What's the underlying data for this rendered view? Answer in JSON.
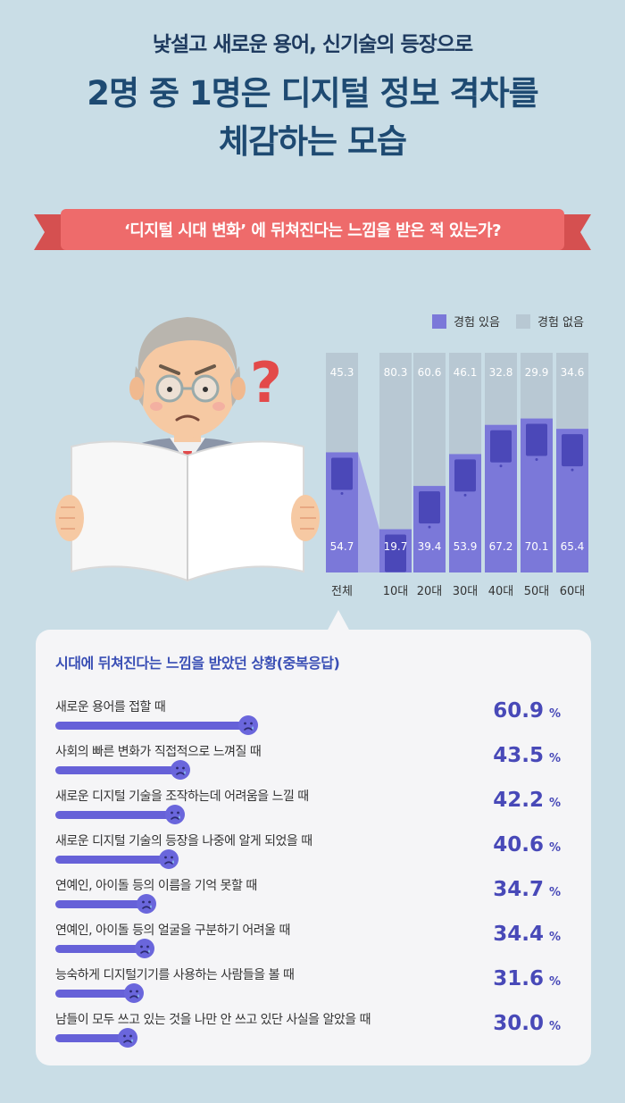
{
  "header": {
    "subtitle": "낯설고 새로운 용어, 신기술의 등장으로",
    "title_line1": "2명 중 1명은 디지털 정보 격차를",
    "title_line2": "체감하는 모습"
  },
  "ribbon": {
    "text": "‘디지털 시대 변화’ 에 뒤쳐진다는 느낌을 받은 적 있는가?"
  },
  "colors": {
    "experienced": "#7b78d9",
    "not_experienced": "#b8c8d3",
    "ribbon": "#ee6b6b",
    "accent": "#4849b8"
  },
  "chart_data": [
    {
      "type": "bar",
      "stacked": true,
      "categories": [
        "전체",
        "10대",
        "20대",
        "30대",
        "40대",
        "50대",
        "60대"
      ],
      "series": [
        {
          "name": "경험 있음",
          "values": [
            54.7,
            19.7,
            39.4,
            53.9,
            67.2,
            70.1,
            65.4
          ]
        },
        {
          "name": "경험 없음",
          "values": [
            45.3,
            80.3,
            60.6,
            46.1,
            32.8,
            29.9,
            34.6
          ]
        }
      ],
      "ylim": [
        0,
        100
      ],
      "legend": "top-right",
      "grid": false
    },
    {
      "type": "bar",
      "orientation": "horizontal",
      "title": "시대에 뒤쳐진다는 느낌을 받았던 상황(중복응답)",
      "unit": "%",
      "categories": [
        "새로운 용어를 접할 때",
        "사회의 빠른 변화가 직접적으로 느껴질 때",
        "새로운 디지털 기술을 조작하는데 어려움을 느낄 때",
        "새로운 디지털 기술의 등장을 나중에 알게 되었을 때",
        "연예인, 아이돌 등의 이름을 기억 못할 때",
        "연예인, 아이돌 등의 얼굴을 구분하기 어려울 때",
        "능숙하게 디지털기기를 사용하는 사람들을 볼 때",
        "남들이 모두 쓰고 있는 것을 나만 안 쓰고 있단 사실을 알았을 때"
      ],
      "values": [
        "60.9",
        "43.5",
        "42.2",
        "40.6",
        "34.7",
        "34.4",
        "31.6",
        "30.0"
      ]
    }
  ],
  "icons": {
    "illustration": "old-man-reading-newspaper-icon",
    "bar_end": "sad-face-icon",
    "question": "question-mark-icon"
  }
}
